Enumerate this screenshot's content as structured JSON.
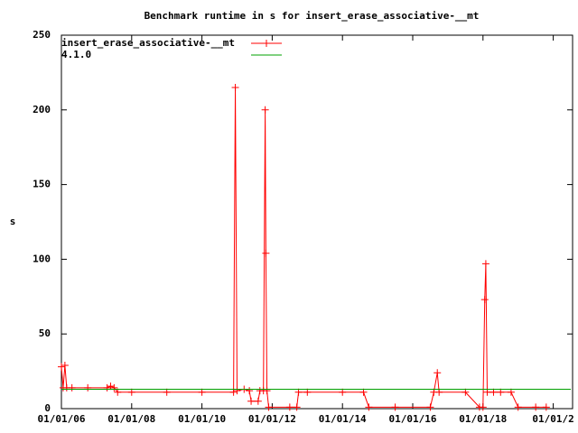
{
  "chart_data": {
    "type": "line",
    "title": "Benchmark runtime in s for insert_erase_associative-__mt",
    "ylabel": "s",
    "xlim": [
      2006,
      2020.55
    ],
    "xticks": [
      {
        "value": 2006,
        "label": "01/01/06"
      },
      {
        "value": 2008,
        "label": "01/01/08"
      },
      {
        "value": 2010,
        "label": "01/01/10"
      },
      {
        "value": 2012,
        "label": "01/01/12"
      },
      {
        "value": 2014,
        "label": "01/01/14"
      },
      {
        "value": 2016,
        "label": "01/01/16"
      },
      {
        "value": 2018,
        "label": "01/01/18"
      },
      {
        "value": 2020,
        "label": "01/01/2"
      }
    ],
    "ylim": [
      0,
      250
    ],
    "yticks": [
      0,
      50,
      100,
      150,
      200,
      250
    ],
    "legend": "top-left",
    "series": [
      {
        "name": "insert_erase_associative-__mt",
        "color": "#ff0000",
        "markers": true,
        "x": [
          2006.0,
          2006.05,
          2006.1,
          2006.15,
          2006.3,
          2006.75,
          2007.3,
          2007.4,
          2007.5,
          2007.6,
          2008,
          2009,
          2010,
          2010.9,
          2010.95,
          2011.0,
          2011.2,
          2011.35,
          2011.4,
          2011.6,
          2011.65,
          2011.75,
          2011.8,
          2011.82,
          2011.85,
          2011.9,
          2012.5,
          2012.7,
          2012.75,
          2013,
          2014,
          2014.6,
          2014.75,
          2015.5,
          2016.5,
          2016.6,
          2016.7,
          2016.75,
          2017.5,
          2017.9,
          2018.0,
          2018.05,
          2018.08,
          2018.12,
          2018.3,
          2018.5,
          2018.8,
          2019.0,
          2019.5,
          2019.8
        ],
        "values": [
          28,
          14,
          29,
          14,
          14,
          14,
          14,
          15,
          14,
          11,
          11,
          11,
          11,
          11,
          215,
          12,
          13,
          12,
          5,
          5,
          12,
          12,
          200,
          104,
          12,
          1,
          1,
          1,
          11,
          11,
          11,
          11,
          1,
          1,
          1,
          11,
          24,
          11,
          11,
          1,
          1,
          73,
          97,
          11,
          11,
          11,
          11,
          1,
          1,
          1
        ]
      },
      {
        "name": "4.1.0",
        "color": "#00a000",
        "markers": false,
        "x": [
          2006,
          2020.5
        ],
        "values": [
          13,
          13
        ]
      }
    ]
  }
}
